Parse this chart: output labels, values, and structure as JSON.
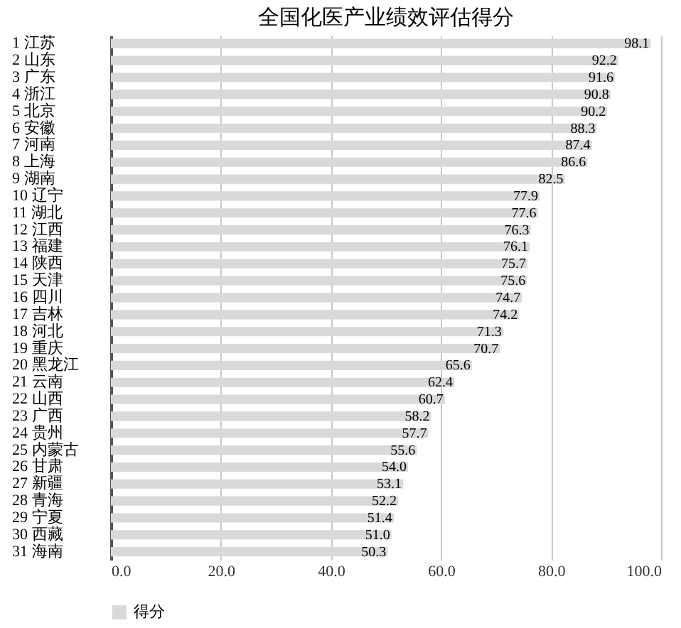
{
  "chart_data": {
    "type": "bar",
    "orientation": "horizontal",
    "title": "全国化医产业绩效评估得分",
    "categories": [
      "1 江苏",
      "2 山东",
      "3 广东",
      "4 浙江",
      "5 北京",
      "6 安徽",
      "7 河南",
      "8 上海",
      "9 湖南",
      "10 辽宁",
      "11 湖北",
      "12 江西",
      "13 福建",
      "14 陕西",
      "15 天津",
      "16 四川",
      "17 吉林",
      "18 河北",
      "19 重庆",
      "20 黑龙江",
      "21 云南",
      "22 山西",
      "23 广西",
      "24 贵州",
      "25 内蒙古",
      "26 甘肃",
      "27 新疆",
      "28 青海",
      "29 宁夏",
      "30 西藏",
      "31 海南"
    ],
    "series": [
      {
        "name": "得分",
        "color": "#d9d9d9",
        "values": [
          98.1,
          92.2,
          91.6,
          90.8,
          90.2,
          88.3,
          87.4,
          86.6,
          82.5,
          77.9,
          77.6,
          76.3,
          76.1,
          75.7,
          75.6,
          74.7,
          74.2,
          71.3,
          70.7,
          65.6,
          62.4,
          60.7,
          58.2,
          57.7,
          55.6,
          54.0,
          53.1,
          52.2,
          51.4,
          51.0,
          50.3
        ],
        "value_labels": [
          "98.1",
          "92.2",
          "91.6",
          "90.8",
          "90.2",
          "88.3",
          "87.4",
          "86.6",
          "82.5",
          "77.9",
          "77.6",
          "76.3",
          "76.1",
          "75.7",
          "75.6",
          "74.7",
          "74.2",
          "71.3",
          "70.7",
          "65.6",
          "62.4",
          "60.7",
          "58.2",
          "57.7",
          "55.6",
          "54.0",
          "53.1",
          "52.2",
          "51.4",
          "51.0",
          "50.3"
        ]
      }
    ],
    "xlim": [
      0,
      100
    ],
    "xticks": [
      {
        "value": 0,
        "label": "0.0"
      },
      {
        "value": 20,
        "label": "20.0"
      },
      {
        "value": 40,
        "label": "40.0"
      },
      {
        "value": 60,
        "label": "60.0"
      },
      {
        "value": 80,
        "label": "80.0"
      },
      {
        "value": 100,
        "label": "100.0"
      }
    ],
    "grid": "x",
    "legend": "bottom"
  }
}
